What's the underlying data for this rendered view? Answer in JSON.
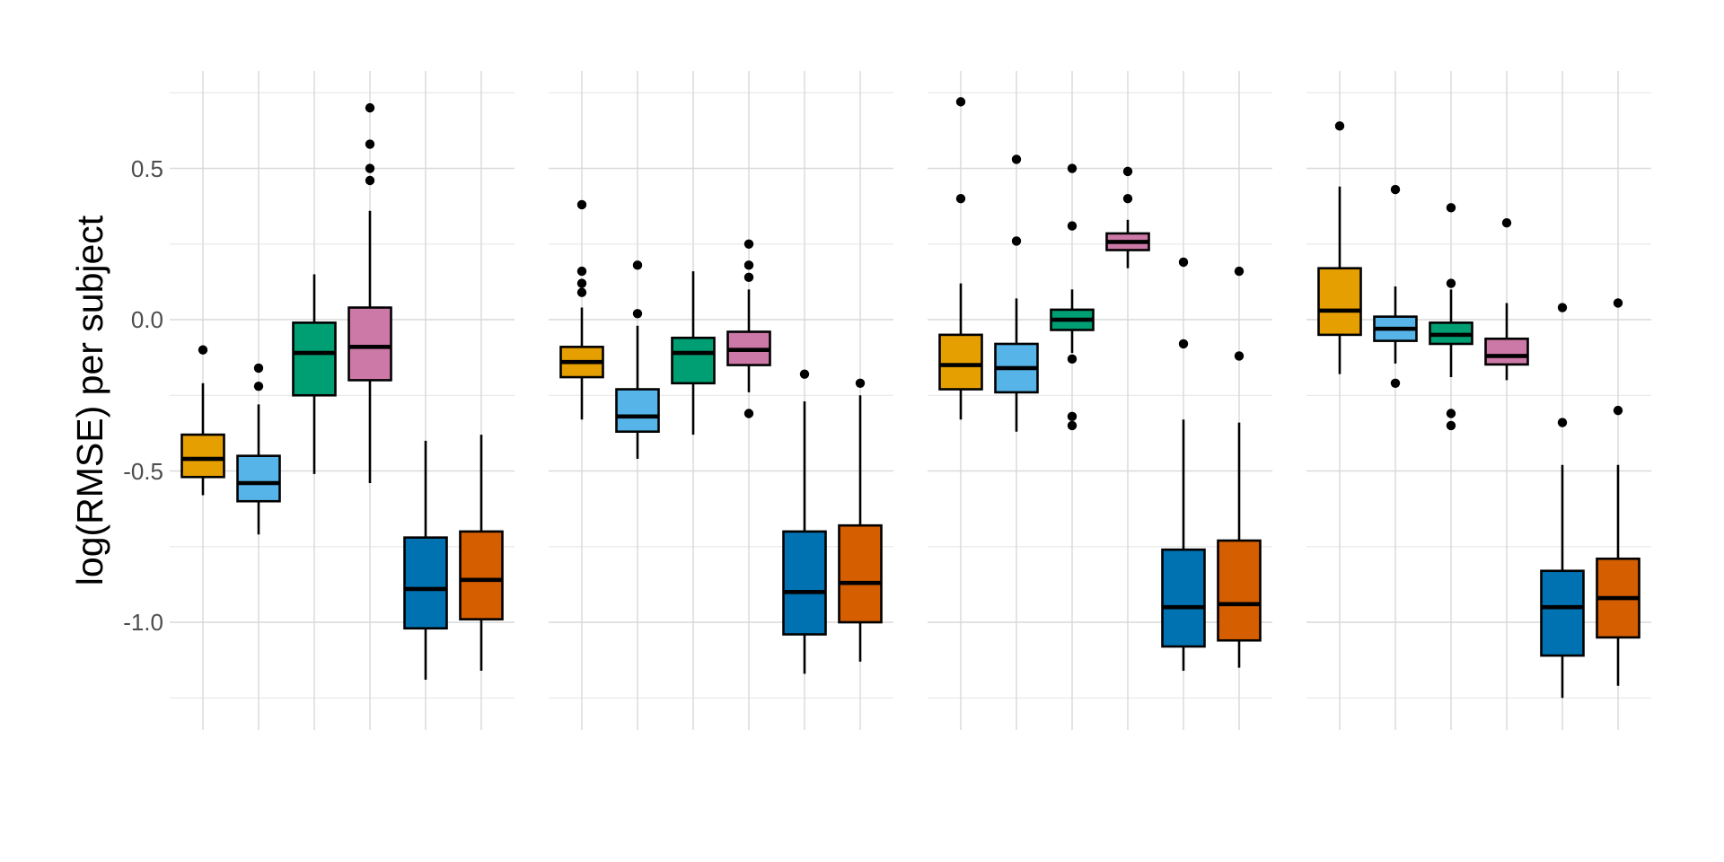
{
  "figure": {
    "background": "#ffffff",
    "title": "",
    "legend": "none",
    "x_axis": {
      "tick_labels": [],
      "title": ""
    }
  },
  "chart_data": {
    "type": "boxplot",
    "ylabel": "log(RMSE) per subject",
    "xlabel": "",
    "ylim": [
      -1.356,
      0.822
    ],
    "y_major_ticks": [
      {
        "value": 0.5,
        "label": "0.5"
      },
      {
        "value": 0.0,
        "label": "0.0"
      },
      {
        "value": -0.5,
        "label": "-0.5"
      },
      {
        "value": -1.0,
        "label": "-1.0"
      }
    ],
    "y_minor_ticks": [
      0.75,
      0.25,
      -0.25,
      -0.75,
      -1.25
    ],
    "grid": "horizontal major+minor, one vertical gridline per box position",
    "n_panels": 4,
    "boxes_per_panel": 6,
    "palette_names": [
      "gold",
      "sky-blue",
      "bluish-green",
      "reddish-purple",
      "dark-blue",
      "vermillion"
    ],
    "colors": [
      "#E69F00",
      "#56B4E9",
      "#009E73",
      "#CC79A7",
      "#0072B2",
      "#D55E00"
    ],
    "grid_major_color": "#D9D9D9",
    "grid_minor_color": "#E7E7E7",
    "tick_label_color": "#4d4d4d",
    "box_outline_color": "#000000",
    "outlier_color": "#000000",
    "panels": [
      {
        "boxes": [
          {
            "color": "#E69F00",
            "whisker_low": -0.58,
            "q1": -0.52,
            "median": -0.46,
            "q3": -0.38,
            "whisker_high": -0.21,
            "outliers": [
              -0.1
            ]
          },
          {
            "color": "#56B4E9",
            "whisker_low": -0.71,
            "q1": -0.6,
            "median": -0.54,
            "q3": -0.45,
            "whisker_high": -0.28,
            "outliers": [
              -0.16,
              -0.22
            ]
          },
          {
            "color": "#009E73",
            "whisker_low": -0.51,
            "q1": -0.25,
            "median": -0.11,
            "q3": -0.01,
            "whisker_high": 0.15,
            "outliers": []
          },
          {
            "color": "#CC79A7",
            "whisker_low": -0.54,
            "q1": -0.2,
            "median": -0.09,
            "q3": 0.04,
            "whisker_high": 0.36,
            "outliers": [
              0.7,
              0.58,
              0.5,
              0.46
            ]
          },
          {
            "color": "#0072B2",
            "whisker_low": -1.19,
            "q1": -1.02,
            "median": -0.89,
            "q3": -0.72,
            "whisker_high": -0.4,
            "outliers": []
          },
          {
            "color": "#D55E00",
            "whisker_low": -1.16,
            "q1": -0.99,
            "median": -0.86,
            "q3": -0.7,
            "whisker_high": -0.38,
            "outliers": []
          }
        ]
      },
      {
        "boxes": [
          {
            "color": "#E69F00",
            "whisker_low": -0.33,
            "q1": -0.19,
            "median": -0.14,
            "q3": -0.09,
            "whisker_high": 0.04,
            "outliers": [
              0.38,
              0.16,
              0.12,
              0.09
            ]
          },
          {
            "color": "#56B4E9",
            "whisker_low": -0.46,
            "q1": -0.37,
            "median": -0.32,
            "q3": -0.23,
            "whisker_high": -0.02,
            "outliers": [
              0.18,
              0.02
            ]
          },
          {
            "color": "#009E73",
            "whisker_low": -0.38,
            "q1": -0.21,
            "median": -0.11,
            "q3": -0.06,
            "whisker_high": 0.16,
            "outliers": []
          },
          {
            "color": "#CC79A7",
            "whisker_low": -0.24,
            "q1": -0.15,
            "median": -0.1,
            "q3": -0.04,
            "whisker_high": 0.1,
            "outliers": [
              0.25,
              0.18,
              0.14,
              -0.31
            ]
          },
          {
            "color": "#0072B2",
            "whisker_low": -1.17,
            "q1": -1.04,
            "median": -0.9,
            "q3": -0.7,
            "whisker_high": -0.27,
            "outliers": [
              -0.18
            ]
          },
          {
            "color": "#D55E00",
            "whisker_low": -1.13,
            "q1": -1.0,
            "median": -0.87,
            "q3": -0.68,
            "whisker_high": -0.25,
            "outliers": [
              -0.21
            ]
          }
        ]
      },
      {
        "boxes": [
          {
            "color": "#E69F00",
            "whisker_low": -0.33,
            "q1": -0.23,
            "median": -0.15,
            "q3": -0.05,
            "whisker_high": 0.12,
            "outliers": [
              0.72,
              0.4
            ]
          },
          {
            "color": "#56B4E9",
            "whisker_low": -0.37,
            "q1": -0.24,
            "median": -0.16,
            "q3": -0.08,
            "whisker_high": 0.07,
            "outliers": [
              0.53,
              0.26
            ]
          },
          {
            "color": "#009E73",
            "whisker_low": -0.11,
            "q1": -0.034,
            "median": 0.0,
            "q3": 0.033,
            "whisker_high": 0.1,
            "outliers": [
              0.5,
              0.31,
              -0.13,
              -0.32,
              -0.35
            ]
          },
          {
            "color": "#CC79A7",
            "whisker_low": 0.17,
            "q1": 0.23,
            "median": 0.257,
            "q3": 0.285,
            "whisker_high": 0.33,
            "outliers": [
              0.49,
              0.4
            ]
          },
          {
            "color": "#0072B2",
            "whisker_low": -1.16,
            "q1": -1.08,
            "median": -0.95,
            "q3": -0.76,
            "whisker_high": -0.33,
            "outliers": [
              0.19,
              -0.08
            ]
          },
          {
            "color": "#D55E00",
            "whisker_low": -1.15,
            "q1": -1.06,
            "median": -0.94,
            "q3": -0.73,
            "whisker_high": -0.34,
            "outliers": [
              0.16,
              -0.12
            ]
          }
        ]
      },
      {
        "boxes": [
          {
            "color": "#E69F00",
            "whisker_low": -0.18,
            "q1": -0.05,
            "median": 0.03,
            "q3": 0.17,
            "whisker_high": 0.44,
            "outliers": [
              0.64
            ]
          },
          {
            "color": "#56B4E9",
            "whisker_low": -0.145,
            "q1": -0.07,
            "median": -0.03,
            "q3": 0.01,
            "whisker_high": 0.11,
            "outliers": [
              0.43,
              -0.21
            ]
          },
          {
            "color": "#009E73",
            "whisker_low": -0.19,
            "q1": -0.08,
            "median": -0.05,
            "q3": -0.01,
            "whisker_high": 0.1,
            "outliers": [
              0.37,
              0.12,
              -0.31,
              -0.35
            ]
          },
          {
            "color": "#CC79A7",
            "whisker_low": -0.2,
            "q1": -0.148,
            "median": -0.12,
            "q3": -0.063,
            "whisker_high": 0.055,
            "outliers": [
              0.32
            ]
          },
          {
            "color": "#0072B2",
            "whisker_low": -1.25,
            "q1": -1.11,
            "median": -0.95,
            "q3": -0.83,
            "whisker_high": -0.48,
            "outliers": [
              0.04,
              -0.34
            ]
          },
          {
            "color": "#D55E00",
            "whisker_low": -1.21,
            "q1": -1.05,
            "median": -0.92,
            "q3": -0.79,
            "whisker_high": -0.48,
            "outliers": [
              0.055,
              -0.3
            ]
          }
        ]
      }
    ]
  }
}
